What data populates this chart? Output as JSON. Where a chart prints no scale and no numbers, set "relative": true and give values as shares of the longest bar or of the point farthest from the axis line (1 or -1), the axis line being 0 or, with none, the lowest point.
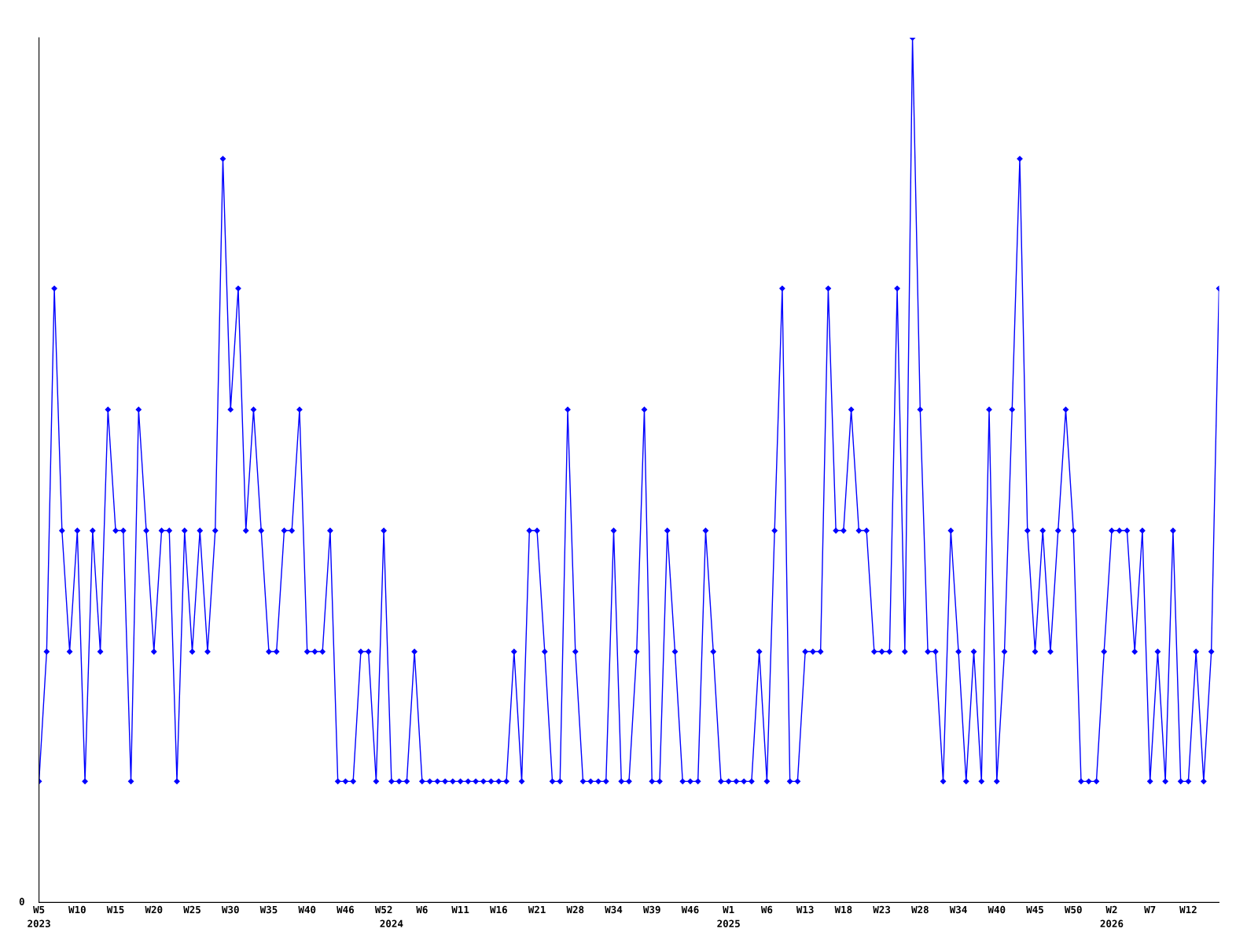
{
  "chart_data": {
    "type": "line",
    "relative": true,
    "color": "#0000ff",
    "marker": "diamond",
    "line_style": "solid",
    "grid": false,
    "legend": false,
    "annotations": [
      "0"
    ],
    "categories": [
      "W5\n2023",
      null,
      null,
      null,
      null,
      "W10",
      null,
      null,
      null,
      null,
      "W15",
      null,
      null,
      null,
      null,
      "W20",
      null,
      null,
      null,
      null,
      "W25",
      null,
      null,
      null,
      null,
      "W30",
      null,
      null,
      null,
      null,
      "W35",
      null,
      null,
      null,
      null,
      "W40",
      null,
      null,
      null,
      null,
      "W46",
      null,
      null,
      null,
      null,
      "W52",
      "\n2024",
      null,
      null,
      null,
      "W6",
      null,
      null,
      null,
      null,
      "W11",
      null,
      null,
      null,
      null,
      "W16",
      null,
      null,
      null,
      null,
      "W21",
      null,
      null,
      null,
      null,
      "W28",
      null,
      null,
      null,
      null,
      "W34",
      null,
      null,
      null,
      null,
      "W39",
      null,
      null,
      null,
      null,
      "W46",
      null,
      null,
      null,
      null,
      "W1\n2025",
      null,
      null,
      null,
      null,
      "W6",
      null,
      null,
      null,
      null,
      "W13",
      null,
      null,
      null,
      null,
      "W18",
      null,
      null,
      null,
      null,
      "W23",
      null,
      null,
      null,
      null,
      "W28",
      null,
      null,
      null,
      null,
      "W34",
      null,
      null,
      null,
      null,
      "W40",
      null,
      null,
      null,
      null,
      "W45",
      null,
      null,
      null,
      null,
      "W50",
      null,
      null,
      null,
      null,
      "W2\n2026",
      null,
      null,
      null,
      null,
      "W7",
      null,
      null,
      null,
      null,
      "W12",
      null,
      null,
      null,
      null
    ],
    "values": [
      0.14,
      0.29,
      0.71,
      0.43,
      0.29,
      0.43,
      0.14,
      0.43,
      0.29,
      0.57,
      0.43,
      0.43,
      0.14,
      0.57,
      0.43,
      0.29,
      0.43,
      0.43,
      0.14,
      0.43,
      0.29,
      0.43,
      0.29,
      0.43,
      0.86,
      0.57,
      0.71,
      0.43,
      0.57,
      0.43,
      0.29,
      0.29,
      0.43,
      0.43,
      0.57,
      0.29,
      0.29,
      0.29,
      0.43,
      0.14,
      0.14,
      0.14,
      0.29,
      0.29,
      0.14,
      0.43,
      0.14,
      0.14,
      0.14,
      0.29,
      0.14,
      0.14,
      0.14,
      0.14,
      0.14,
      0.14,
      0.14,
      0.14,
      0.14,
      0.14,
      0.14,
      0.14,
      0.29,
      0.14,
      0.43,
      0.43,
      0.29,
      0.14,
      0.14,
      0.57,
      0.29,
      0.14,
      0.14,
      0.14,
      0.14,
      0.43,
      0.14,
      0.14,
      0.29,
      0.57,
      0.14,
      0.14,
      0.43,
      0.29,
      0.14,
      0.14,
      0.14,
      0.43,
      0.29,
      0.14,
      0.14,
      0.14,
      0.14,
      0.14,
      0.29,
      0.14,
      0.43,
      0.71,
      0.14,
      0.14,
      0.29,
      0.29,
      0.29,
      0.71,
      0.43,
      0.43,
      0.57,
      0.43,
      0.43,
      0.29,
      0.29,
      0.29,
      0.71,
      0.29,
      1,
      0.57,
      0.29,
      0.29,
      0.14,
      0.43,
      0.29,
      0.14,
      0.29,
      0.14,
      0.57,
      0.14,
      0.29,
      0.57,
      0.86,
      0.43,
      0.29,
      0.43,
      0.29,
      0.43,
      0.57,
      0.43,
      0.14,
      0.14,
      0.14,
      0.29,
      0.43,
      0.43,
      0.43,
      0.29,
      0.43,
      0.14,
      0.29,
      0.14,
      0.43,
      0.14,
      0.14,
      0.29,
      0.14,
      0.29,
      0.71
    ]
  }
}
